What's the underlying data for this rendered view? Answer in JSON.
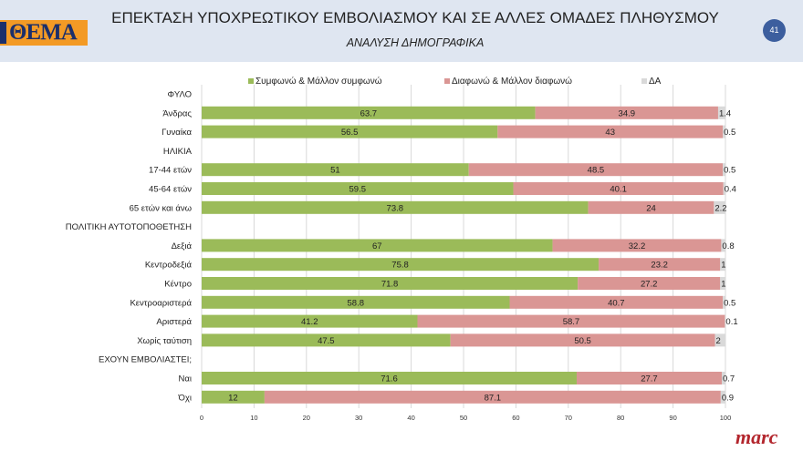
{
  "header": {
    "logo_text": "ΘΕΜΑ",
    "title": "ΕΠΕΚΤΑΣΗ ΥΠΟΧΡΕΩΤΙΚΟΥ ΕΜΒΟΛΙΑΣΜΟΥ ΚΑΙ ΣΕ ΑΛΛΕΣ ΟΜΑΔΕΣ ΠΛΗΘΥΣΜΟΥ",
    "subtitle": "ΑΝΑΛΥΣΗ ΔΗΜΟΓΡΑΦΙΚΑ",
    "page_number": "41"
  },
  "footer": {
    "brand": "marc"
  },
  "chart_data": {
    "type": "bar",
    "orientation": "horizontal",
    "stacked": true,
    "xlim": [
      0,
      100
    ],
    "xticks": [
      0,
      10,
      20,
      30,
      40,
      50,
      60,
      70,
      80,
      90,
      100
    ],
    "grid": true,
    "legend": "top",
    "categories": [
      "ΦΥΛΟ",
      "Άνδρας",
      "Γυναίκα",
      "ΗΛΙΚΙΑ",
      "17-44 ετών",
      "45-64 ετών",
      "65 ετών και άνω",
      "ΠΟΛΙΤΙΚΗ ΑΥΤΟΤΟΠΟΘΕΤΗΣΗ",
      "Δεξιά",
      "Κεντροδεξιά",
      "Κέντρο",
      "Κεντροαριστερά",
      "Αριστερά",
      "Χωρίς ταύτιση",
      "ΕΧΟΥΝ ΕΜΒΟΛΙΑΣΤΕΙ;",
      "Ναι",
      "Όχι"
    ],
    "series": [
      {
        "name": "Συμφωνώ & Μάλλον συμφωνώ",
        "color": "#9bbb59",
        "values": [
          null,
          63.7,
          56.5,
          null,
          51,
          59.5,
          73.8,
          null,
          67,
          75.8,
          71.8,
          58.8,
          41.2,
          47.5,
          null,
          71.6,
          12
        ]
      },
      {
        "name": "Διαφωνώ & Μάλλον διαφωνώ",
        "color": "#da9694",
        "values": [
          null,
          34.9,
          43,
          null,
          48.5,
          40.1,
          24,
          null,
          32.2,
          23.2,
          27.2,
          40.7,
          58.7,
          50.5,
          null,
          27.7,
          87.1
        ]
      },
      {
        "name": "ΔΑ",
        "color": "#d9d9d9",
        "values": [
          null,
          1.4,
          0.5,
          null,
          0.5,
          0.4,
          2.2,
          null,
          0.8,
          1,
          1,
          0.5,
          0.1,
          2,
          null,
          0.7,
          0.9
        ]
      }
    ]
  }
}
